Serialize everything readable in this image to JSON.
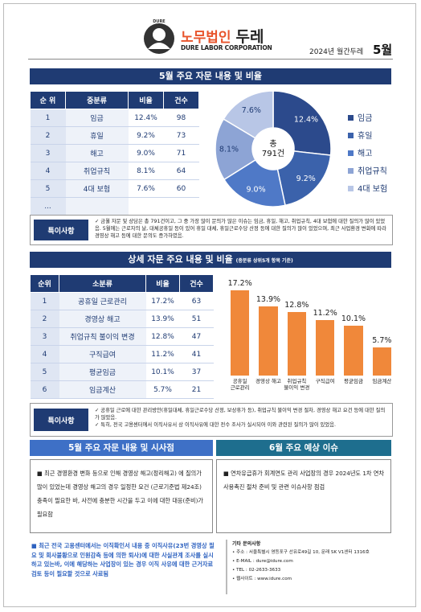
{
  "header": {
    "logo": "DURE",
    "firm_prefix": "노무법인",
    "firm_name": "두레",
    "firm_en": "DURE LABOR CORPORATION",
    "issue": "2024년 월간두레",
    "month": "5월"
  },
  "section1": {
    "title": "5월 주요 자문 내용 및 비율",
    "table": {
      "columns": [
        "순 위",
        "중분류",
        "비율",
        "건수"
      ],
      "rows": [
        [
          "1",
          "임금",
          "12.4%",
          "98"
        ],
        [
          "2",
          "휴일",
          "9.2%",
          "73"
        ],
        [
          "3",
          "해고",
          "9.0%",
          "71"
        ],
        [
          "4",
          "취업규칙",
          "8.1%",
          "64"
        ],
        [
          "5",
          "4대 보험",
          "7.6%",
          "60"
        ],
        [
          "..."
        ]
      ]
    },
    "note_label": "특이사항",
    "note": "금월 자문 및 상담은 총 791건이고, 그 중 가장 많이 문의가 많은 이슈는 임금, 휴일, 해고, 취업규칙, 4대 보험에 대한 질의가 많이 있었음. 5월에는 근로자의 날, 대체공휴일 등이 있어 휴일 대체, 휴일근로수당 산정 등에 대한 질의가 많이 있었으며, 최근 사업환경 변화에 따라 경영상 해고 등에 대한 문의도 증가하였음."
  },
  "chart_data": [
    {
      "type": "donut",
      "categories": [
        "임금",
        "휴일",
        "해고",
        "취업규칙",
        "4대 보험"
      ],
      "values": [
        12.4,
        9.2,
        9.0,
        8.1,
        7.6
      ],
      "value_labels": [
        "12.4%",
        "9.2%",
        "9.0%",
        "8.1%",
        "7.6%"
      ],
      "colors": [
        "#2c4a8c",
        "#3b62ab",
        "#4f79c7",
        "#8da4d5",
        "#b8c6e6"
      ],
      "center_label": [
        "총",
        "791건"
      ]
    },
    {
      "type": "bar",
      "categories": [
        "공휴일 근로관리",
        "경영상 해고",
        "취업규칙 불이익 변경",
        "구직급여",
        "평균임금",
        "임금계산"
      ],
      "values": [
        17.2,
        13.9,
        12.8,
        11.2,
        10.1,
        5.7
      ],
      "value_labels": [
        "17.2%",
        "13.9%",
        "12.8%",
        "11.2%",
        "10.1%",
        "5.7%"
      ],
      "color": "#f0883a"
    }
  ],
  "section2": {
    "title": "상세 자문 주요 내용 및 비율",
    "subtitle": "(중분류 상위5개 항목 기준)",
    "table": {
      "columns": [
        "순위",
        "소분류",
        "비율",
        "건수"
      ],
      "rows": [
        [
          "1",
          "공휴일 근로관리",
          "17.2%",
          "63"
        ],
        [
          "2",
          "경영상 해고",
          "13.9%",
          "51"
        ],
        [
          "3",
          "취업규칙 불이익 변경",
          "12.8%",
          "47"
        ],
        [
          "4",
          "구직급여",
          "11.2%",
          "41"
        ],
        [
          "5",
          "평균임금",
          "10.1%",
          "37"
        ],
        [
          "6",
          "임금계산",
          "5.7%",
          "21"
        ]
      ]
    },
    "note_label": "특이사항",
    "notes": [
      "공휴일 근로에 대한 관리방안(휴일대체, 휴일근로수당 산정, 보상휴가 등), 취업규칙 불이익 변경 절차, 경영상 해고 요건 등에 대한 질의가 많았음.",
      "특히, 전국 고용센터에서 이직사유서 상 이직사유에 대한 전수 조사가 실시되어 이와 관련된 질의가 많이 있었음."
    ]
  },
  "section3": {
    "left_title": "5월 주요 자문 내용 및 시사점",
    "left_text": "최근 경영환경 변화 등으로 인해 경영상 해고(정리해고) 에 질의가 많이 있었는데 경영상 해고의 경우 일정한 요건 (근로기준법 제24조) 충족이 필요한 바, 사전에 충분한 시간을 두고 이에 대한 대응(준비)가 필요함",
    "right_title": "6월 주요 예상 이슈",
    "right_text": "연차유급휴가 회계연도 관리 사업장의 경우 2024년도 1차 연차사용촉진 절차 준비 및 관련 이슈사항 점검",
    "bottom_note": "최근 전국 고용센터에서는 이직확인서 내용 중 이직사유(23번 경영상 필요 및 회사불황으로 인원감축 등에 의한 퇴사)에 대한 사실관계 조사를 실시하고 있는바, 이에 해당하는 사업장이 있는 경우 이직 사유에 대한 근거자료 검토 등이 필요할 것으로 사료됨"
  },
  "contact": {
    "title": "기타 문의사항",
    "lines": [
      "주소 : 서울특별시 영등포구 선유로49길 10, 문래 SK V1센터 1316호",
      "E-MAIL : dure@idure.com",
      "TEL : 02-2633-3633",
      "웹사이트 : www.idure.com"
    ]
  }
}
